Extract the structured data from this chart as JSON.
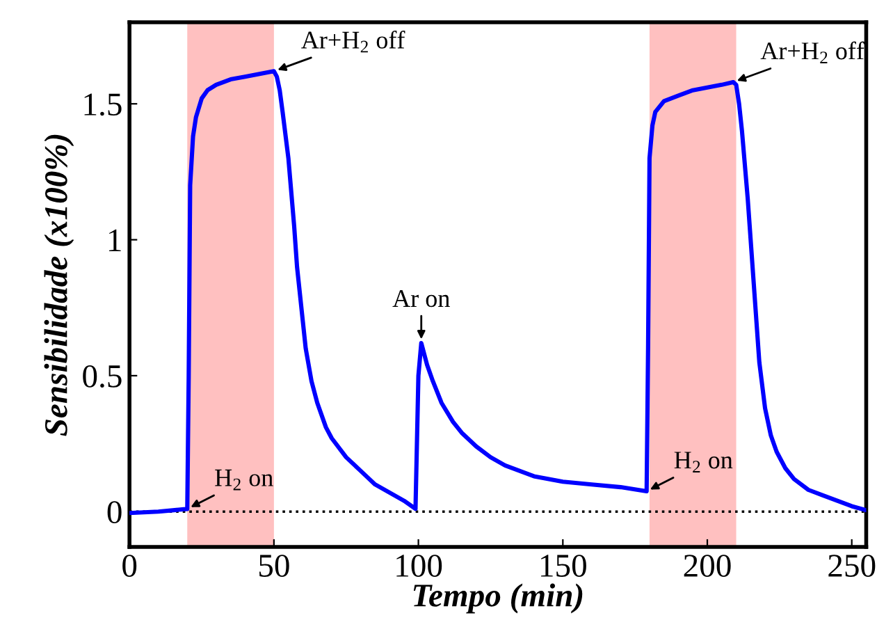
{
  "chart_data": {
    "type": "line",
    "xlabel": "Tempo (min)",
    "ylabel": "Sensibilidade (x100%)",
    "x": [
      0,
      10,
      20,
      20.5,
      21,
      22,
      23,
      25,
      27,
      30,
      35,
      40,
      45,
      50,
      51,
      52,
      53,
      55,
      57,
      58,
      60,
      61,
      63,
      65,
      68,
      70,
      75,
      80,
      85,
      90,
      95,
      99,
      100,
      101,
      103,
      105,
      108,
      112,
      115,
      120,
      125,
      130,
      140,
      150,
      160,
      170,
      179,
      179.5,
      180,
      181,
      182,
      185,
      190,
      195,
      200,
      205,
      209,
      210,
      211,
      212,
      214,
      216,
      217,
      218,
      220,
      222,
      224,
      227,
      230,
      235,
      240,
      245,
      250,
      255
    ],
    "series": [
      {
        "color": "#0000ff",
        "values": [
          -0.005,
          0.0,
          0.01,
          0.5,
          1.2,
          1.38,
          1.45,
          1.52,
          1.55,
          1.57,
          1.59,
          1.6,
          1.61,
          1.62,
          1.6,
          1.55,
          1.47,
          1.3,
          1.05,
          0.9,
          0.7,
          0.6,
          0.48,
          0.4,
          0.31,
          0.27,
          0.2,
          0.15,
          0.1,
          0.07,
          0.04,
          0.01,
          0.5,
          0.62,
          0.54,
          0.48,
          0.4,
          0.33,
          0.29,
          0.24,
          0.2,
          0.17,
          0.13,
          0.11,
          0.1,
          0.09,
          0.075,
          0.6,
          1.3,
          1.42,
          1.47,
          1.51,
          1.53,
          1.55,
          1.56,
          1.57,
          1.58,
          1.57,
          1.5,
          1.4,
          1.15,
          0.85,
          0.7,
          0.55,
          0.38,
          0.28,
          0.22,
          0.16,
          0.12,
          0.08,
          0.06,
          0.04,
          0.02,
          0.005
        ]
      }
    ],
    "xlim": [
      0,
      255
    ],
    "ylim": [
      -0.13,
      1.8
    ],
    "xticks": [
      0,
      50,
      100,
      150,
      200,
      250
    ],
    "yticks": [
      0,
      0.5,
      1,
      1.5
    ],
    "grid": false,
    "legend": false,
    "ref_lines": [
      {
        "axis": "y",
        "value": 0,
        "color": "#000000",
        "line_style": "dotted"
      }
    ],
    "bands": [
      {
        "axis": "x",
        "from": 20,
        "to": 50,
        "color": "#ffc0c0"
      },
      {
        "axis": "x",
        "from": 180,
        "to": 210,
        "color": "#ffc0c0"
      }
    ],
    "annotations": [
      {
        "text": "H$_{2}$ on",
        "x": 20,
        "y": 0.01
      },
      {
        "text": "Ar+H$_{2}$ off",
        "x": 50,
        "y": 1.62
      },
      {
        "text": "Ar on",
        "x": 101,
        "y": 0.62
      },
      {
        "text": "H$_{2}$ on",
        "x": 179,
        "y": 0.075
      },
      {
        "text": "Ar+H$_{2}$ off",
        "x": 209,
        "y": 1.58
      }
    ]
  }
}
